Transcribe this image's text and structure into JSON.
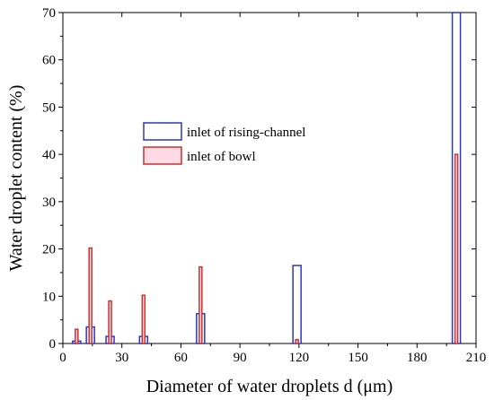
{
  "chart_data": {
    "type": "bar",
    "title": "",
    "xlabel": "Diameter of water droplets d (μm)",
    "ylabel": "Water droplet content (%)",
    "xlim": [
      0,
      210
    ],
    "ylim": [
      0,
      70
    ],
    "xticks": [
      0,
      30,
      60,
      90,
      120,
      150,
      180,
      210
    ],
    "yticks": [
      0,
      10,
      20,
      30,
      40,
      50,
      60,
      70
    ],
    "grid": false,
    "legend_position": "center-left",
    "series": [
      {
        "name": "inlet of rising-channel",
        "color": "#2b35c9",
        "fill": "none",
        "x": [
          7,
          14,
          24,
          41,
          70,
          119,
          200
        ],
        "values": [
          0.5,
          3.5,
          1.5,
          1.5,
          6.3,
          16.5,
          70
        ]
      },
      {
        "name": "inlet of bowl",
        "color": "#c8332f",
        "fill": "#ffd9e4",
        "x": [
          7,
          14,
          24,
          41,
          70,
          119,
          200
        ],
        "values": [
          3,
          20.2,
          9,
          10.2,
          16.2,
          0.8,
          40
        ]
      }
    ]
  }
}
